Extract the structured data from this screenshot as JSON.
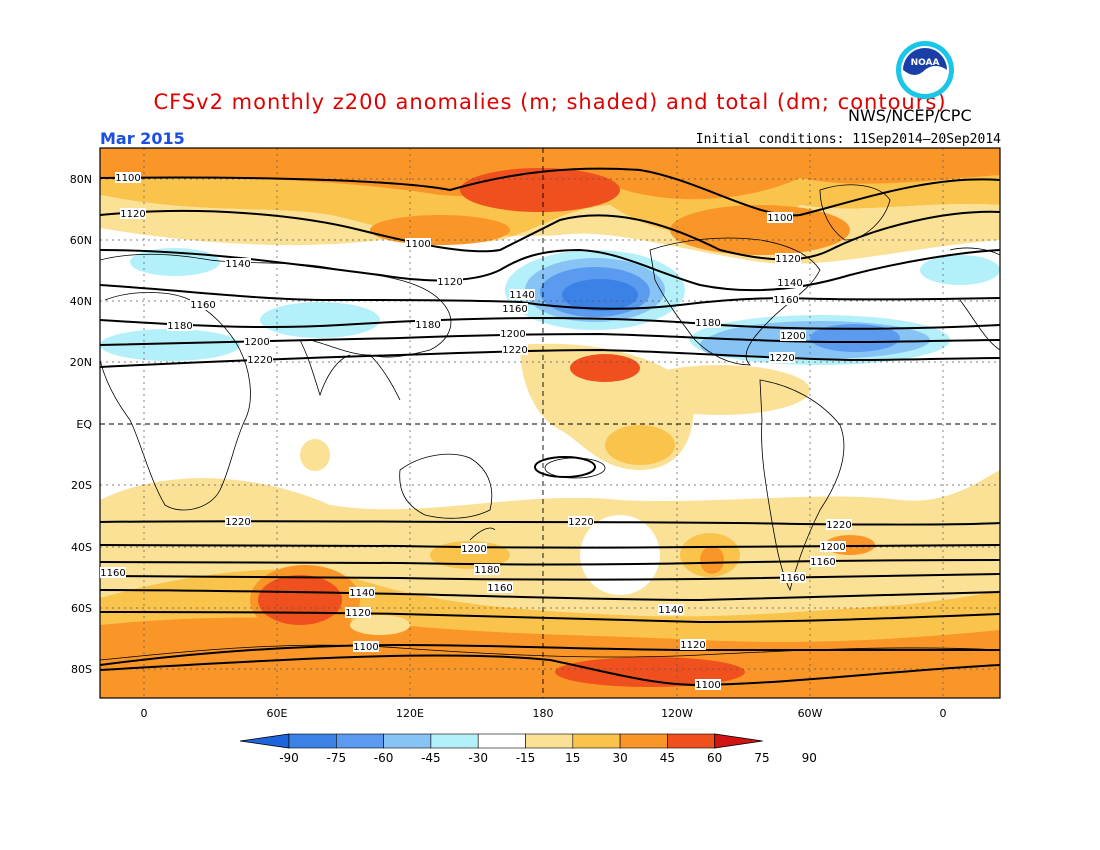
{
  "header": {
    "title": "CFSv2 monthly z200 anomalies (m; shaded) and total (dm; contours)",
    "agency": "NWS/NCEP/CPC",
    "valid_month": "Mar 2015",
    "initial_conditions": "Initial conditions: 11Sep2014–20Sep2014",
    "logo_text": "NOAA"
  },
  "map": {
    "projection": "cylindrical equidistant",
    "lon_range": [
      -20,
      20
    ],
    "lat_range": [
      -90,
      90
    ],
    "lat_labels": [
      "80N",
      "60N",
      "40N",
      "20N",
      "EQ",
      "20S",
      "40S",
      "60S",
      "80S"
    ],
    "lon_labels": [
      "0",
      "60E",
      "120E",
      "180",
      "120W",
      "60W",
      "0"
    ],
    "contour_labels": {
      "north": [
        "1100",
        "1120",
        "1140",
        "1160",
        "1180",
        "1200",
        "1220"
      ],
      "south": [
        "1220",
        "1200",
        "1180",
        "1160",
        "1140",
        "1120",
        "1100"
      ]
    }
  },
  "colorbar": {
    "ticks": [
      "-90",
      "-75",
      "-60",
      "-45",
      "-30",
      "-15",
      "15",
      "30",
      "45",
      "60",
      "75",
      "90"
    ],
    "colors": [
      "#1e64dc",
      "#3c82e6",
      "#5a9bf0",
      "#87c3f5",
      "#b4f0fa",
      "#ffffff",
      "#fae196",
      "#fac34b",
      "#fa9628",
      "#f0501e",
      "#d21414"
    ]
  },
  "chart_data": {
    "type": "heatmap",
    "title": "CFSv2 monthly z200 anomalies (m; shaded) and total (dm; contours)",
    "field": "z200 anomaly (m) and total geopotential height (dm)",
    "valid": "Mar 2015",
    "contour_levels_dm": [
      1100,
      1120,
      1140,
      1160,
      1180,
      1200,
      1220
    ],
    "shading_levels_m": [
      -90,
      -75,
      -60,
      -45,
      -30,
      -15,
      15,
      30,
      45,
      60,
      75,
      90
    ],
    "features": [
      {
        "region": "North Pacific ~40N 170W",
        "anomaly_m": -60
      },
      {
        "region": "Subtropical North Atlantic ~25N 40W",
        "anomaly_m": -45
      },
      {
        "region": "Arctic ~80N",
        "anomaly_m": 60
      },
      {
        "region": "Southern Ocean ~55S 70E",
        "anomaly_m": 75
      },
      {
        "region": "Antarctica ~85S 150W",
        "anomaly_m": 75
      }
    ]
  }
}
